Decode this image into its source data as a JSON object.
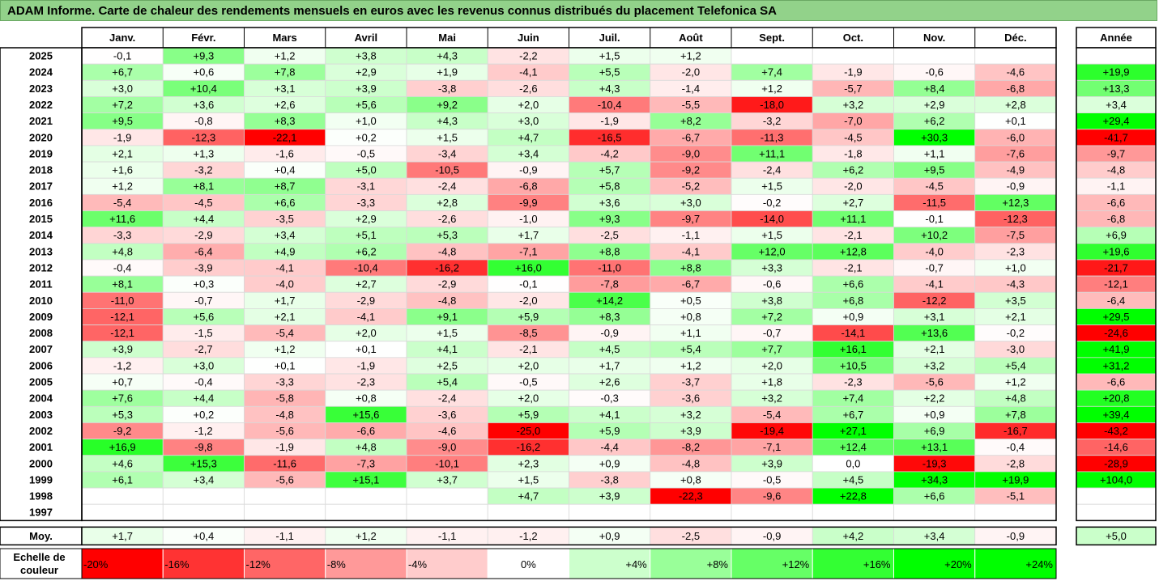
{
  "title": "ADAM Informe. Carte de chaleur des rendements mensuels en euros avec les revenus connus distribués du placement Telefonica SA",
  "chart_data": {
    "type": "heatmap",
    "unit": "%",
    "months": [
      "Janv.",
      "Févr.",
      "Mars",
      "Avril",
      "Mai",
      "Juin",
      "Juil.",
      "Août",
      "Sept.",
      "Oct.",
      "Nov.",
      "Déc."
    ],
    "year_header": "Année",
    "years": [
      "2025",
      "2024",
      "2023",
      "2022",
      "2021",
      "2020",
      "2019",
      "2018",
      "2017",
      "2016",
      "2015",
      "2014",
      "2013",
      "2012",
      "2011",
      "2010",
      "2009",
      "2008",
      "2007",
      "2006",
      "2005",
      "2004",
      "2003",
      "2002",
      "2001",
      "2000",
      "1999",
      "1998",
      "1997"
    ],
    "values": [
      [
        "-0,1",
        "+9,3",
        "+1,2",
        "+3,8",
        "+4,3",
        "-2,2",
        "+1,5",
        "+1,2",
        "",
        "",
        "",
        ""
      ],
      [
        "+6,7",
        "+0,6",
        "+7,8",
        "+2,9",
        "+1,9",
        "-4,1",
        "+5,5",
        "-2,0",
        "+7,4",
        "-1,9",
        "-0,6",
        "-4,6"
      ],
      [
        "+3,0",
        "+10,4",
        "+3,1",
        "+3,9",
        "-3,8",
        "-2,6",
        "+4,3",
        "-1,4",
        "+1,2",
        "-5,7",
        "+8,4",
        "-6,8"
      ],
      [
        "+7,2",
        "+3,6",
        "+2,6",
        "+5,6",
        "+9,2",
        "+2,0",
        "-10,4",
        "-5,5",
        "-18,0",
        "+3,2",
        "+2,9",
        "+2,8"
      ],
      [
        "+9,5",
        "-0,8",
        "+8,3",
        "+1,0",
        "+4,3",
        "+3,0",
        "-1,9",
        "+8,2",
        "-3,2",
        "-7,0",
        "+6,2",
        "+0,1"
      ],
      [
        "-1,9",
        "-12,3",
        "-22,1",
        "+0,2",
        "+1,5",
        "+4,7",
        "-16,5",
        "-6,7",
        "-11,3",
        "-4,5",
        "+30,3",
        "-6,0"
      ],
      [
        "+2,1",
        "+1,3",
        "-1,6",
        "-0,5",
        "-3,4",
        "+3,4",
        "-4,2",
        "-9,0",
        "+11,1",
        "-1,8",
        "+1,1",
        "-7,6"
      ],
      [
        "+1,6",
        "-3,2",
        "+0,4",
        "+5,0",
        "-10,5",
        "-0,9",
        "+5,7",
        "-9,2",
        "-2,4",
        "+6,2",
        "+9,5",
        "-4,9"
      ],
      [
        "+1,2",
        "+8,1",
        "+8,7",
        "-3,1",
        "-2,4",
        "-6,8",
        "+5,8",
        "-5,2",
        "+1,5",
        "-2,0",
        "-4,5",
        "-0,9"
      ],
      [
        "-5,4",
        "-4,5",
        "+6,6",
        "-3,3",
        "+2,8",
        "-9,9",
        "+3,6",
        "+3,0",
        "-0,2",
        "+2,7",
        "-11,5",
        "+12,3"
      ],
      [
        "+11,6",
        "+4,4",
        "-3,5",
        "+2,9",
        "-2,6",
        "-1,0",
        "+9,3",
        "-9,7",
        "-14,0",
        "+11,1",
        "-0,1",
        "-12,3"
      ],
      [
        "-3,3",
        "-2,9",
        "+3,4",
        "+5,1",
        "+5,3",
        "+1,7",
        "-2,5",
        "-1,1",
        "+1,5",
        "-2,1",
        "+10,2",
        "-7,5"
      ],
      [
        "+4,8",
        "-6,4",
        "+4,9",
        "+6,2",
        "-4,8",
        "-7,1",
        "+8,8",
        "-4,1",
        "+12,0",
        "+12,8",
        "-4,0",
        "-2,3"
      ],
      [
        "-0,4",
        "-3,9",
        "-4,1",
        "-10,4",
        "-16,2",
        "+16,0",
        "-11,0",
        "+8,8",
        "+3,3",
        "-2,1",
        "-0,7",
        "+1,0"
      ],
      [
        "+8,1",
        "+0,3",
        "-4,0",
        "+2,7",
        "-2,9",
        "-0,1",
        "-7,8",
        "-6,7",
        "-0,6",
        "+6,6",
        "-4,1",
        "-4,3"
      ],
      [
        "-11,0",
        "-0,7",
        "+1,7",
        "-2,9",
        "-4,8",
        "-2,0",
        "+14,2",
        "+0,5",
        "+3,8",
        "+6,8",
        "-12,2",
        "+3,5"
      ],
      [
        "-12,1",
        "+5,6",
        "+2,1",
        "-4,1",
        "+9,1",
        "+5,9",
        "+8,3",
        "+0,8",
        "+7,2",
        "+0,9",
        "+3,1",
        "+2,1"
      ],
      [
        "-12,1",
        "-1,5",
        "-5,4",
        "+2,0",
        "+1,5",
        "-8,5",
        "-0,9",
        "+1,1",
        "-0,7",
        "-14,1",
        "+13,6",
        "-0,2"
      ],
      [
        "+3,9",
        "-2,7",
        "+1,2",
        "+0,1",
        "+4,1",
        "-2,1",
        "+4,5",
        "+5,4",
        "+7,7",
        "+16,1",
        "+2,1",
        "-3,0"
      ],
      [
        "-1,2",
        "+3,0",
        "+0,1",
        "-1,9",
        "+2,5",
        "+2,0",
        "+1,7",
        "+1,2",
        "+2,0",
        "+10,5",
        "+3,2",
        "+5,4"
      ],
      [
        "+0,7",
        "-0,4",
        "-3,3",
        "-2,3",
        "+5,4",
        "-0,5",
        "+2,6",
        "-3,7",
        "+1,8",
        "-2,3",
        "-5,6",
        "+1,2"
      ],
      [
        "+7,6",
        "+4,4",
        "-5,8",
        "+0,8",
        "-2,4",
        "+2,0",
        "-0,3",
        "-3,6",
        "+3,2",
        "+7,4",
        "+2,2",
        "+4,8"
      ],
      [
        "+5,3",
        "+0,2",
        "-4,8",
        "+15,6",
        "-3,6",
        "+5,9",
        "+4,1",
        "+3,2",
        "-5,4",
        "+6,7",
        "+0,9",
        "+7,8"
      ],
      [
        "-9,2",
        "-1,2",
        "-5,6",
        "-6,6",
        "-4,6",
        "-25,0",
        "+5,9",
        "+3,9",
        "-19,4",
        "+27,1",
        "+6,9",
        "-16,7"
      ],
      [
        "+16,9",
        "-9,8",
        "-1,9",
        "+4,8",
        "-9,0",
        "-16,2",
        "-4,4",
        "-8,2",
        "-7,1",
        "+12,4",
        "+13,1",
        "-0,4"
      ],
      [
        "+4,6",
        "+15,3",
        "-11,6",
        "-7,3",
        "-10,1",
        "+2,3",
        "+0,9",
        "-4,8",
        "+3,9",
        "0,0",
        "-19,3",
        "-2,8"
      ],
      [
        "+6,1",
        "+3,4",
        "-5,6",
        "+15,1",
        "+3,7",
        "+1,5",
        "-3,8",
        "+0,8",
        "-0,5",
        "+4,5",
        "+34,3",
        "+19,9"
      ],
      [
        "",
        "",
        "",
        "",
        "",
        "+4,7",
        "+3,9",
        "-22,3",
        "-9,6",
        "+22,8",
        "+6,6",
        "-5,1"
      ],
      [
        "",
        "",
        "",
        "",
        "",
        "",
        "",
        "",
        "",
        "",
        "",
        ""
      ]
    ],
    "annual": [
      "",
      "+19,9",
      "+13,3",
      "+3,4",
      "+29,4",
      "-41,7",
      "-9,7",
      "-4,8",
      "-1,1",
      "-6,6",
      "-6,8",
      "+6,9",
      "+19,6",
      "-21,7",
      "-12,1",
      "-6,4",
      "+29,5",
      "-24,6",
      "+41,9",
      "+31,2",
      "-6,6",
      "+20,8",
      "+39,4",
      "-43,2",
      "-14,6",
      "-28,9",
      "+104,0",
      "",
      ""
    ],
    "average_label": "Moy.",
    "average": [
      "+1,7",
      "+0,4",
      "-1,1",
      "+1,2",
      "-1,1",
      "-1,2",
      "+0,9",
      "-2,5",
      "-0,9",
      "+4,2",
      "+3,4",
      "-0,9"
    ],
    "average_annual": "+5,0",
    "scale_label": [
      "Echelle de",
      "couleur"
    ],
    "scale": [
      "-20%",
      "-16%",
      "-12%",
      "-8%",
      "-4%",
      "0%",
      "+4%",
      "+8%",
      "+12%",
      "+16%",
      "+20%",
      "+24%"
    ],
    "colors": {
      "negative_max": "#ff0000",
      "neutral": "#ffffff",
      "positive_max": "#00ff00",
      "title_background": "#92d28a"
    }
  }
}
